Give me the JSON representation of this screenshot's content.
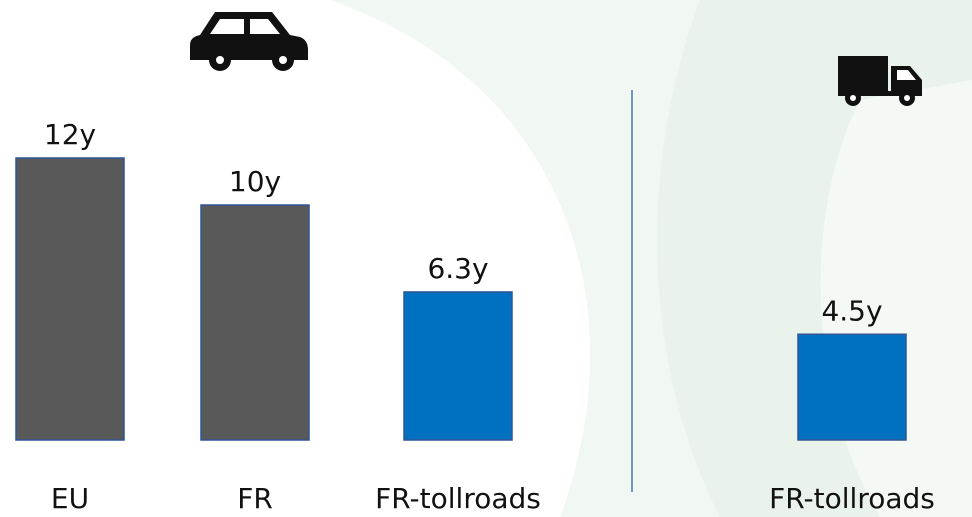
{
  "chart_data": [
    {
      "type": "bar",
      "categories": [
        "EU",
        "FR",
        "FR-tollroads"
      ],
      "values": [
        12,
        10,
        6.3
      ],
      "value_labels": [
        "12y",
        "10y",
        "6.3y"
      ],
      "colors": [
        "#595959",
        "#595959",
        "#0070c0"
      ]
    },
    {
      "type": "bar",
      "categories": [
        "FR-tollroads"
      ],
      "values": [
        4.5
      ],
      "value_labels": [
        "4.5y"
      ],
      "colors": [
        "#0070c0"
      ]
    }
  ]
}
